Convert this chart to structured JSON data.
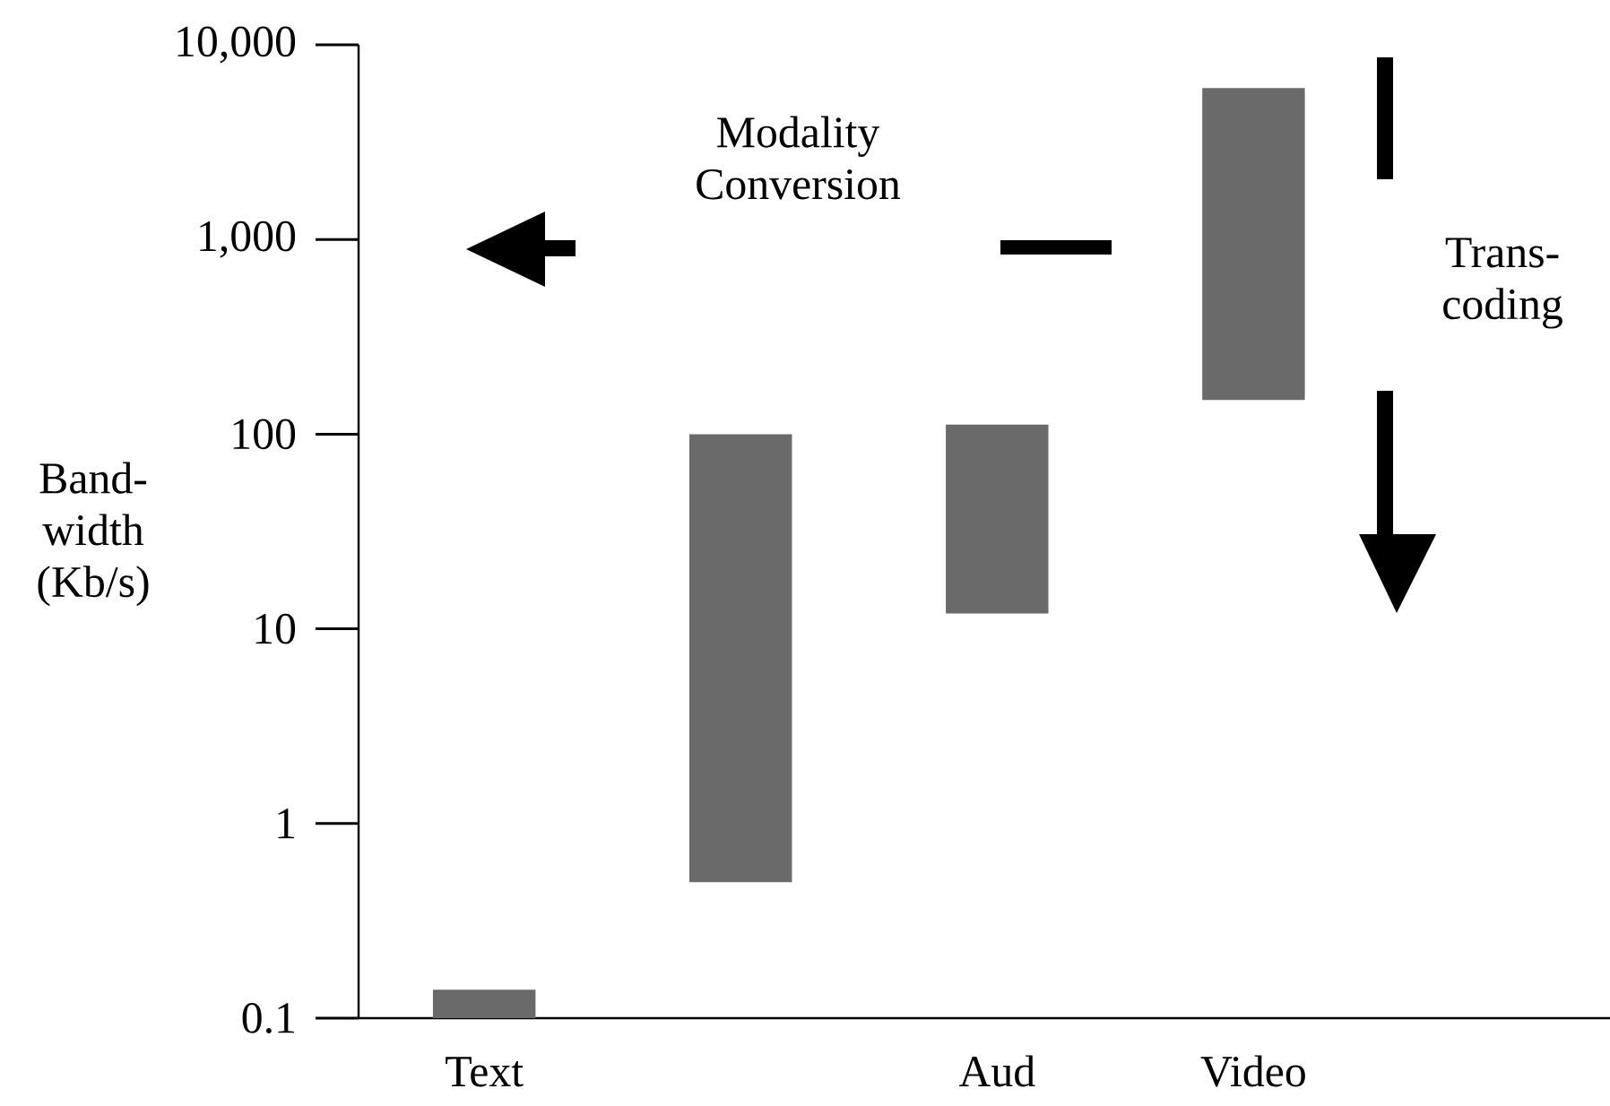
{
  "chart_data": {
    "type": "bar",
    "ylabel": "Band-width (Kb/s)",
    "categories": [
      "Text",
      null,
      "Aud",
      "Video"
    ],
    "base": [
      0.1,
      0.5,
      12,
      150
    ],
    "values": [
      0.04,
      99.5,
      100,
      5850
    ],
    "color": "#6a6a6a",
    "log": "y",
    "ylim": [
      0.1,
      10000
    ],
    "yticks": [
      0.1,
      1,
      10,
      100,
      {
        "value": 1000,
        "label": "1,000"
      },
      {
        "value": 10000,
        "label": "10,000"
      }
    ],
    "annotations": [
      "Modality Conversion",
      "Trans-coding"
    ],
    "grid": false
  }
}
